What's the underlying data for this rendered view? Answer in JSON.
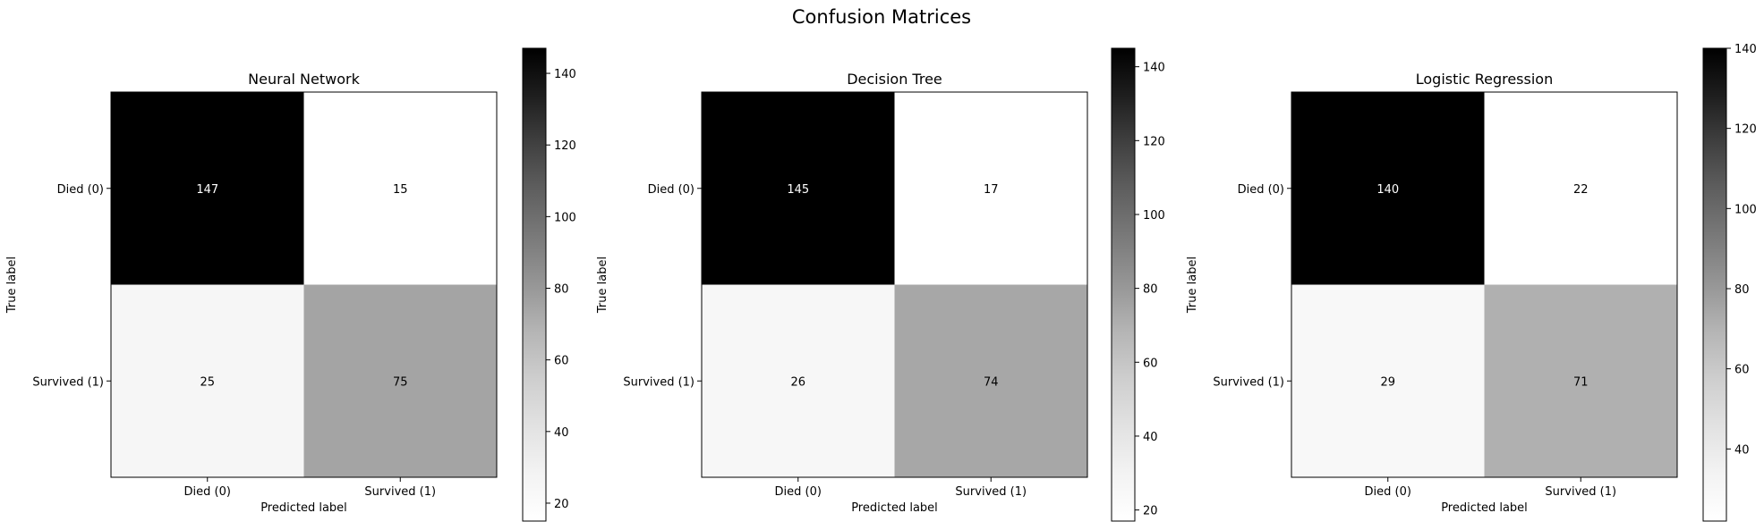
{
  "figure": {
    "suptitle": "Confusion Matrices"
  },
  "chart_data": [
    {
      "type": "heatmap",
      "title": "Neural Network",
      "xlabel": "Predicted label",
      "ylabel": "True label",
      "x_categories": [
        "Died (0)",
        "Survived (1)"
      ],
      "y_categories": [
        "Died (0)",
        "Survived (1)"
      ],
      "matrix": [
        [
          147,
          15
        ],
        [
          25,
          75
        ]
      ],
      "colormap": "Greys",
      "colorbar": {
        "range": [
          15,
          147
        ],
        "ticks": [
          20,
          40,
          60,
          80,
          100,
          120,
          140
        ]
      }
    },
    {
      "type": "heatmap",
      "title": "Decision Tree",
      "xlabel": "Predicted label",
      "ylabel": "True label",
      "x_categories": [
        "Died (0)",
        "Survived (1)"
      ],
      "y_categories": [
        "Died (0)",
        "Survived (1)"
      ],
      "matrix": [
        [
          145,
          17
        ],
        [
          26,
          74
        ]
      ],
      "colormap": "Greys",
      "colorbar": {
        "range": [
          17,
          145
        ],
        "ticks": [
          20,
          40,
          60,
          80,
          100,
          120,
          140
        ]
      }
    },
    {
      "type": "heatmap",
      "title": "Logistic Regression",
      "xlabel": "Predicted label",
      "ylabel": "True label",
      "x_categories": [
        "Died (0)",
        "Survived (1)"
      ],
      "y_categories": [
        "Died (0)",
        "Survived (1)"
      ],
      "matrix": [
        [
          140,
          22
        ],
        [
          29,
          71
        ]
      ],
      "colormap": "Greys",
      "colorbar": {
        "range": [
          22,
          140
        ],
        "ticks": [
          40,
          60,
          80,
          100,
          120,
          140
        ]
      }
    }
  ]
}
